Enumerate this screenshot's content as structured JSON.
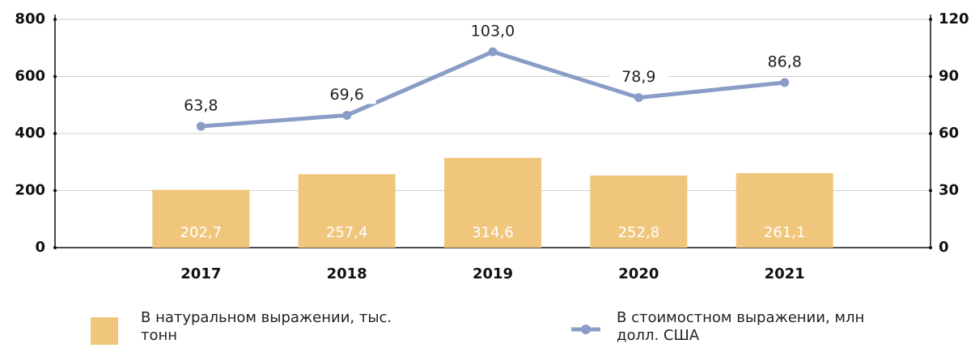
{
  "chart_data": {
    "type": "bar_line",
    "categories": [
      "2017",
      "2018",
      "2019",
      "2020",
      "2021"
    ],
    "series": [
      {
        "name": "В натуральном выражении, тыс. тонн",
        "type": "bar",
        "color": "#f0c67c",
        "axis": "y",
        "values": [
          202.7,
          257.4,
          314.6,
          252.8,
          261.1
        ],
        "value_labels": [
          "202,7",
          "257,4",
          "314,6",
          "252,8",
          "261,1"
        ]
      },
      {
        "name": "В стоимостном выражении, млн долл. США",
        "type": "line",
        "color": "#8a9dc7",
        "axis": "y2",
        "values": [
          63.8,
          69.6,
          103.0,
          78.9,
          86.8
        ],
        "value_labels": [
          "63,8",
          "69,6",
          "103,0",
          "78,9",
          "86,8"
        ]
      }
    ],
    "ylim": [
      0,
      800
    ],
    "yticks": [
      0,
      200,
      400,
      600,
      800
    ],
    "y2lim": [
      0,
      120
    ],
    "y2ticks": [
      0,
      30,
      60,
      90,
      120
    ],
    "grid": true
  }
}
